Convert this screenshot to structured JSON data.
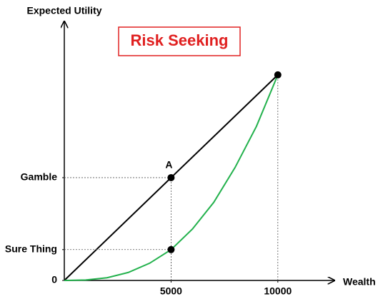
{
  "chart_data": {
    "type": "line",
    "title": "Risk Seeking",
    "xlabel": "Wealth",
    "ylabel": "Expected Utility",
    "xlim": [
      0,
      12650
    ],
    "ylim": [
      0,
      1.26
    ],
    "xticks": [
      5000,
      10000
    ],
    "yticks": [
      0,
      {
        "value": 0.15,
        "label": "Sure Thing"
      },
      {
        "value": 0.5,
        "label": "Gamble"
      }
    ],
    "series": [
      {
        "color": "#000000",
        "x": [
          0,
          10000
        ],
        "values": [
          0,
          1
        ]
      },
      {
        "color": "#22b14c",
        "x": [
          0,
          1000,
          2000,
          3000,
          4000,
          5000,
          6000,
          7000,
          8000,
          9000,
          10000
        ],
        "values": [
          0,
          0.002,
          0.013,
          0.039,
          0.084,
          0.15,
          0.25,
          0.38,
          0.55,
          0.75,
          1
        ]
      }
    ],
    "points": {
      "x": [
        5000,
        5000,
        10000
      ],
      "values": [
        0.5,
        0.15,
        1
      ],
      "labels": [
        "A",
        null,
        null
      ]
    }
  }
}
